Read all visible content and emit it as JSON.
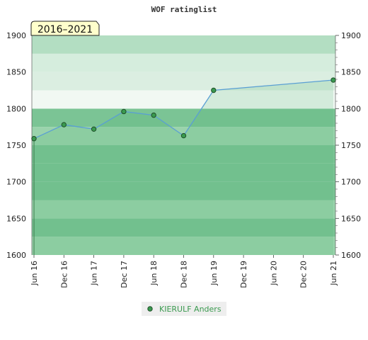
{
  "chart_data": {
    "type": "area",
    "title": "WOF ratinglist",
    "period_label": "2016–2021",
    "xlabel": "",
    "ylabel": "",
    "ylim": [
      1600,
      1900
    ],
    "yticks": [
      1600,
      1650,
      1700,
      1750,
      1800,
      1850,
      1900
    ],
    "categories": [
      "Jun 16",
      "Dec 16",
      "Jun 17",
      "Dec 17",
      "Jun 18",
      "Dec 18",
      "Jun 19",
      "Dec 19",
      "Jun 20",
      "Dec 20",
      "Jun 21"
    ],
    "series": [
      {
        "name": "KIERULF Anders",
        "x": [
          "Jun 16",
          "Dec 16",
          "Jun 17",
          "Dec 17",
          "Jun 18",
          "Dec 18",
          "Jun 19",
          "Jun 21"
        ],
        "values": [
          1759,
          1778,
          1772,
          1796,
          1791,
          1763,
          1825,
          1839
        ]
      }
    ],
    "legend_position": "bottom-center",
    "grid": true,
    "colors": {
      "band_dark": "#7bc495",
      "band_light": "#9ad3ac",
      "band_top_dark": "#b3dec2",
      "band_top_light": "#d5eddd",
      "band_near_white": "#f1f8f3",
      "area_fill": "#8fcea3",
      "line": "#5a9fd4",
      "marker": "#3a9a4f",
      "period_box": "#ffffcc"
    }
  }
}
